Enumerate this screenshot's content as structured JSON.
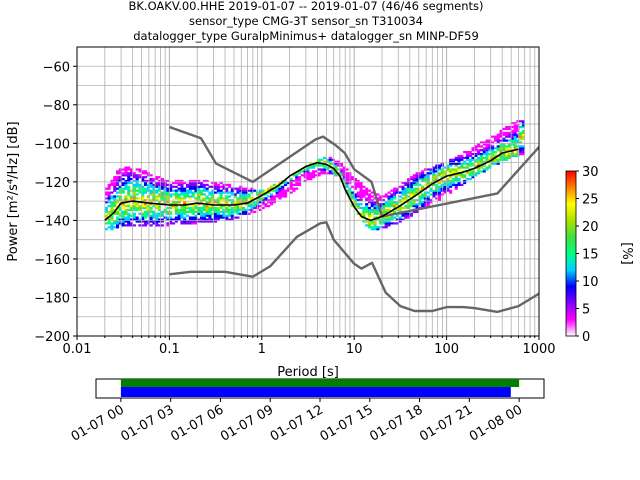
{
  "title_lines": [
    "BK.OAKV.00.HHE   2019-01-07 -- 2019-01-07  (46/46 segments)",
    "sensor_type CMG-3T sensor_sn T310034",
    "datalogger_type GuralpMinimus+ datalogger_sn MINP-DF59"
  ],
  "colorbar": {
    "label": "[%]",
    "ticks": [
      "0",
      "5",
      "10",
      "15",
      "20",
      "25",
      "30"
    ],
    "range": [
      0,
      30
    ],
    "colormap": [
      "#ffffff",
      "#ff00ff",
      "#8000ff",
      "#0000ff",
      "#00d0ff",
      "#00ff80",
      "#40e040",
      "#b0e000",
      "#ffff00",
      "#ff8000",
      "#ff0000"
    ]
  },
  "timeline": {
    "ticks": [
      "01-07 00",
      "01-07 03",
      "01-07 06",
      "01-07 09",
      "01-07 12",
      "01-07 15",
      "01-07 18",
      "01-07 21",
      "01-08 00"
    ],
    "range_hours": [
      -1.5,
      25.5
    ],
    "green_bar_hours": [
      0,
      24
    ],
    "blue_bar_hours": [
      0,
      23.5
    ],
    "green_color": "#008000",
    "blue_color": "#0000ff"
  },
  "chart_data": {
    "type": "line",
    "xlabel": "Period [s]",
    "ylabel": "Power [m²/s⁴/Hz] [dB]",
    "xscale": "log",
    "xlim": [
      0.01,
      1000
    ],
    "ylim": [
      -200,
      -50
    ],
    "xticks": [
      "0.01",
      "0.1",
      "1",
      "10",
      "100",
      "1000"
    ],
    "yticks": [
      "−200",
      "−180",
      "−160",
      "−140",
      "−120",
      "−100",
      "−80",
      "−60"
    ],
    "grid": true,
    "series": [
      {
        "name": "",
        "color": "#666666",
        "x": [
          0.1,
          0.22,
          0.32,
          0.8,
          3.8,
          4.6,
          6.3,
          7.9,
          10,
          15.4,
          20,
          354.8,
          10000
        ],
        "y": [
          -91.5,
          -97.4,
          -110.5,
          -120.0,
          -98.0,
          -96.5,
          -101.0,
          -105.0,
          -113.5,
          -120.0,
          -138.0,
          -126.0,
          -48.5
        ]
      },
      {
        "name": "",
        "color": "#666666",
        "x": [
          0.1,
          0.17,
          0.4,
          0.8,
          1.24,
          2.4,
          4.3,
          5.0,
          6.0,
          10,
          12,
          15.6,
          21.9,
          31.6,
          45,
          70,
          100,
          150,
          200,
          354.8,
          600,
          1000
        ],
        "y": [
          -168.0,
          -166.7,
          -166.7,
          -169.2,
          -163.7,
          -148.5,
          -141.5,
          -141.0,
          -150.0,
          -162.5,
          -165.0,
          -162.0,
          -177.5,
          -184.5,
          -187.0,
          -187.0,
          -185.0,
          -185.0,
          -185.5,
          -187.5,
          -184.5,
          -178.0
        ]
      },
      {
        "name": "",
        "color": "#000000",
        "x": [
          0.02,
          0.025,
          0.03,
          0.04,
          0.06,
          0.1,
          0.15,
          0.2,
          0.3,
          0.5,
          0.7,
          1.0,
          1.5,
          2.0,
          3.0,
          4.0,
          5.0,
          6.0,
          7.0,
          8.0,
          10,
          12,
          15,
          20,
          30,
          50,
          70,
          100,
          150,
          200,
          300,
          400,
          500,
          600
        ],
        "y": [
          -140,
          -136,
          -131,
          -130,
          -131,
          -132,
          -132,
          -131,
          -132,
          -132,
          -131,
          -127,
          -122,
          -117,
          -112,
          -110,
          -111,
          -113,
          -117,
          -124,
          -133,
          -138,
          -140,
          -138,
          -133,
          -126,
          -121,
          -117,
          -115,
          -113,
          -109,
          -105,
          -104,
          -103
        ]
      }
    ],
    "psd_cloud": {
      "description": "probability density of PSD values",
      "x": [
        0.02,
        0.03,
        0.05,
        0.1,
        0.2,
        0.5,
        1,
        2,
        3,
        5,
        7,
        10,
        15,
        20,
        30,
        50,
        100,
        200,
        300,
        500,
        700
      ],
      "upper": [
        -125,
        -112,
        -114,
        -120,
        -119,
        -122,
        -125,
        -118,
        -112,
        -107,
        -110,
        -118,
        -125,
        -128,
        -122,
        -115,
        -110,
        -102,
        -97,
        -90,
        -87
      ],
      "lower": [
        -146,
        -144,
        -143,
        -143,
        -142,
        -140,
        -135,
        -127,
        -120,
        -116,
        -118,
        -135,
        -146,
        -145,
        -142,
        -136,
        -128,
        -118,
        -113,
        -108,
        -106
      ]
    }
  }
}
